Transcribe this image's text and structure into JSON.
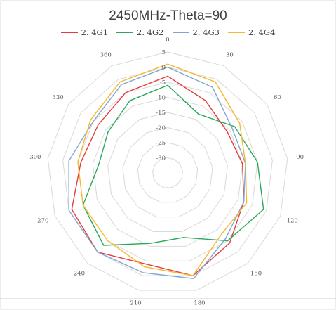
{
  "chart_data": {
    "type": "radar",
    "title": "2450MHz-Theta=90",
    "angles": [
      "0",
      "30",
      "60",
      "90",
      "120",
      "150",
      "180",
      "210",
      "240",
      "270",
      "300",
      "330",
      "360"
    ],
    "radial_ticks": [
      5,
      0,
      -5,
      -10,
      -15,
      -20,
      -25,
      -30
    ],
    "rlim": [
      -35,
      5
    ],
    "grid": true,
    "legend_position": "top",
    "series": [
      {
        "name": "2. 4G1",
        "color": "#e83a3a",
        "values": [
          -3,
          -8,
          -11,
          -10,
          -8,
          -4,
          0,
          -4,
          0,
          -1,
          -6,
          -7,
          -5
        ]
      },
      {
        "name": "2. 4G2",
        "color": "#2aa85a",
        "values": [
          -6,
          -13,
          -8,
          -5,
          -1,
          -5,
          -13,
          -11,
          -3,
          -5,
          -12,
          -11,
          -8
        ]
      },
      {
        "name": "2. 4G3",
        "color": "#7fa7d1",
        "values": [
          0,
          -3,
          -9,
          -9,
          -8,
          -6,
          1,
          -1,
          0,
          0,
          -2,
          -5,
          -2
        ]
      },
      {
        "name": "2. 4G4",
        "color": "#f5b82e",
        "values": [
          1,
          -1,
          -6,
          -9,
          -7,
          -8,
          0,
          -3,
          -5,
          -5,
          -5,
          -4,
          -1
        ]
      }
    ]
  }
}
